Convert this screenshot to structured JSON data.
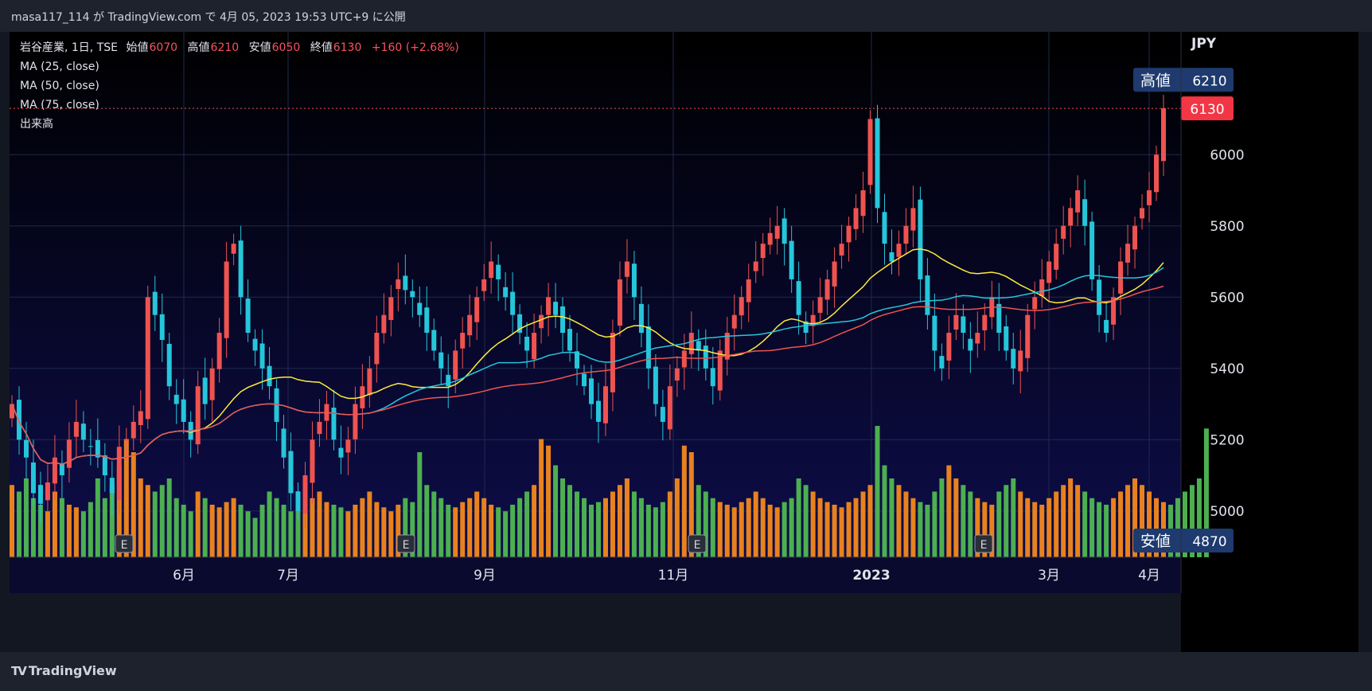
{
  "header": {
    "title": "masa117_114 が TradingView.com で 4月 05, 2023 19:53 UTC+9 に公開"
  },
  "footer": {
    "brand": "TradingView"
  },
  "legend": {
    "symbol": "岩谷産業, 1日, TSE",
    "open_label": "始値",
    "open": "6070",
    "high_label": "高値",
    "high": "6210",
    "low_label": "安値",
    "low": "6050",
    "close_label": "終値",
    "close": "6130",
    "change": "+160 (+2.68%)",
    "indicators": [
      "MA (25, close)",
      "MA (50, close)",
      "MA (75, close)",
      "出来高"
    ]
  },
  "colors": {
    "up": "#f7525f",
    "down": "#22ab94",
    "up_candle": "#ef5350",
    "down_candle": "#26c6da",
    "vol_up": "#e8821e",
    "vol_down": "#4caf50",
    "ma25": "#ffeb3b",
    "ma50": "#26c6da",
    "ma75": "#ef5350",
    "bg_top": "#000000",
    "bg_bottom": "#0d0d4a"
  },
  "chart_data": {
    "type": "candlestick",
    "title": "岩谷産業, 1日, TSE",
    "currency": "JPY",
    "ylim": [
      4870,
      6300
    ],
    "y_ticks": [
      5000,
      5200,
      5400,
      5600,
      5800,
      6000
    ],
    "x_ticks": [
      "6月",
      "7月",
      "9月",
      "11月",
      "2023",
      "3月",
      "4月"
    ],
    "price_labels": [
      {
        "name": "高値",
        "value": 6210
      },
      {
        "name": "last",
        "value": 6130
      },
      {
        "name": "安値",
        "value": 4870
      }
    ],
    "earnings_markers": [
      "E",
      "E",
      "E",
      "E"
    ],
    "close_series": [
      5300,
      5200,
      5150,
      5050,
      5020,
      5080,
      5150,
      5100,
      5200,
      5250,
      5200,
      5180,
      5150,
      5100,
      5050,
      5180,
      5200,
      5250,
      5280,
      5600,
      5550,
      5480,
      5350,
      5300,
      5250,
      5200,
      5350,
      5300,
      5400,
      5500,
      5700,
      5750,
      5600,
      5500,
      5450,
      5400,
      5350,
      5250,
      5150,
      5050,
      5000,
      5100,
      5200,
      5250,
      5300,
      5200,
      5150,
      5200,
      5300,
      5350,
      5400,
      5500,
      5550,
      5600,
      5650,
      5620,
      5600,
      5550,
      5500,
      5450,
      5400,
      5350,
      5450,
      5500,
      5550,
      5600,
      5650,
      5700,
      5650,
      5600,
      5550,
      5500,
      5450,
      5500,
      5550,
      5600,
      5550,
      5500,
      5450,
      5400,
      5350,
      5300,
      5250,
      5350,
      5500,
      5650,
      5700,
      5600,
      5500,
      5400,
      5300,
      5250,
      5350,
      5400,
      5450,
      5500,
      5450,
      5400,
      5350,
      5450,
      5500,
      5550,
      5600,
      5650,
      5700,
      5750,
      5780,
      5800,
      5750,
      5650,
      5550,
      5500,
      5550,
      5600,
      5650,
      5700,
      5750,
      5800,
      5850,
      5900,
      6100,
      5850,
      5750,
      5700,
      5750,
      5800,
      5850,
      5650,
      5550,
      5450,
      5400,
      5500,
      5550,
      5500,
      5450,
      5500,
      5550,
      5600,
      5500,
      5450,
      5400,
      5450,
      5550,
      5600,
      5650,
      5700,
      5750,
      5800,
      5850,
      5900,
      5800,
      5650,
      5550,
      5500,
      5600,
      5700,
      5750,
      5800,
      5850,
      5900,
      6000,
      6130
    ],
    "volume_series": [
      0.55,
      0.5,
      0.6,
      0.45,
      0.4,
      0.35,
      0.5,
      0.45,
      0.4,
      0.38,
      0.35,
      0.42,
      0.6,
      0.45,
      0.55,
      0.7,
      0.9,
      0.8,
      0.6,
      0.55,
      0.5,
      0.55,
      0.6,
      0.45,
      0.4,
      0.35,
      0.5,
      0.45,
      0.4,
      0.38,
      0.42,
      0.45,
      0.4,
      0.35,
      0.3,
      0.4,
      0.5,
      0.45,
      0.4,
      0.35,
      0.38,
      0.4,
      0.45,
      0.5,
      0.42,
      0.4,
      0.38,
      0.35,
      0.4,
      0.45,
      0.5,
      0.42,
      0.38,
      0.35,
      0.4,
      0.45,
      0.42,
      0.8,
      0.55,
      0.5,
      0.45,
      0.4,
      0.38,
      0.42,
      0.45,
      0.5,
      0.45,
      0.4,
      0.38,
      0.35,
      0.4,
      0.45,
      0.5,
      0.55,
      0.9,
      0.85,
      0.7,
      0.6,
      0.55,
      0.5,
      0.45,
      0.4,
      0.42,
      0.45,
      0.5,
      0.55,
      0.6,
      0.5,
      0.45,
      0.4,
      0.38,
      0.42,
      0.5,
      0.6,
      0.85,
      0.8,
      0.55,
      0.5,
      0.45,
      0.42,
      0.4,
      0.38,
      0.42,
      0.45,
      0.5,
      0.45,
      0.4,
      0.38,
      0.42,
      0.45,
      0.6,
      0.55,
      0.5,
      0.45,
      0.42,
      0.4,
      0.38,
      0.42,
      0.45,
      0.5,
      0.55,
      1.0,
      0.7,
      0.6,
      0.55,
      0.5,
      0.45,
      0.42,
      0.4,
      0.5,
      0.6,
      0.7,
      0.6,
      0.55,
      0.5,
      0.45,
      0.42,
      0.4,
      0.5,
      0.55,
      0.6,
      0.5,
      0.45,
      0.42,
      0.4,
      0.45,
      0.5,
      0.55,
      0.6,
      0.55,
      0.5,
      0.45,
      0.42,
      0.4,
      0.45,
      0.5,
      0.55,
      0.6,
      0.55,
      0.5,
      0.45,
      0.42,
      0.4,
      0.45,
      0.5,
      0.55,
      0.6,
      0.98
    ]
  }
}
